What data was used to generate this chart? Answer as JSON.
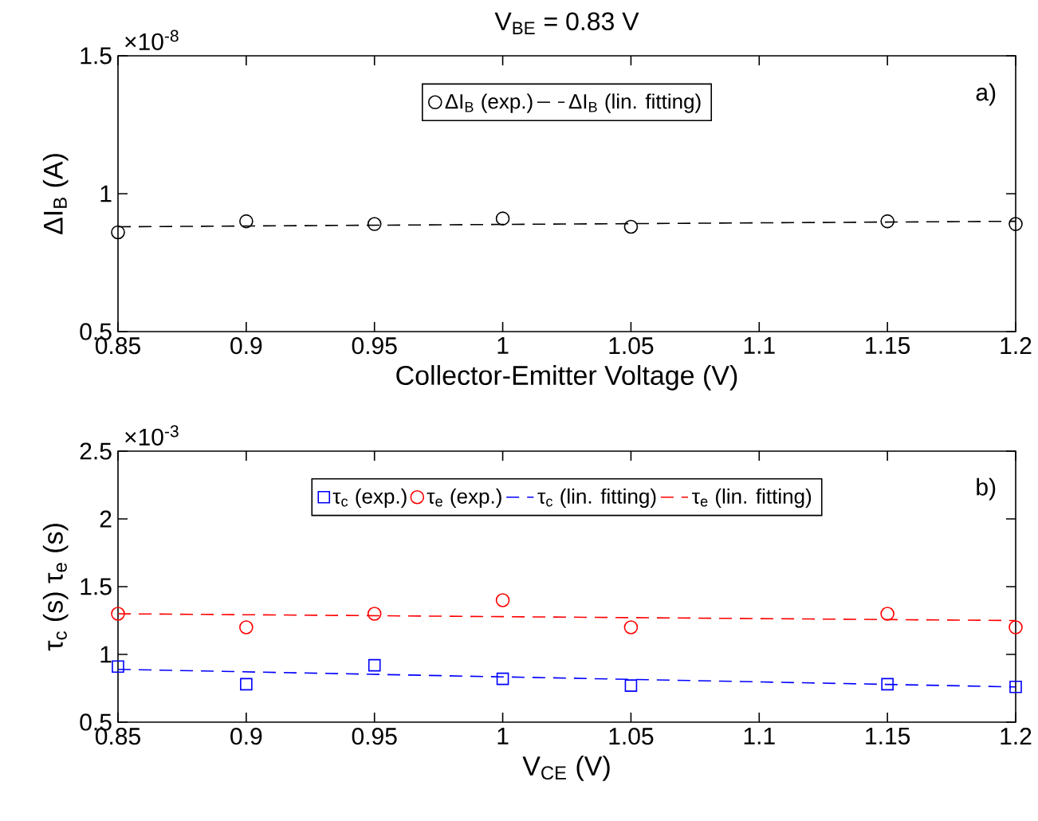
{
  "chart_data": [
    {
      "type": "scatter",
      "title": "V$_{BE}$ = 0.83 V",
      "xlabel": "Collector-Emitter Voltage (V)",
      "ylabel": "ΔI$_{B}$ (A)",
      "annotations": [
        "×10$^{-8}$",
        "a)"
      ],
      "xlim": [
        0.85,
        1.2
      ],
      "xticks": [
        0.85,
        0.9,
        0.95,
        1,
        1.05,
        1.1,
        1.15,
        1.2
      ],
      "ylim": [
        0.5,
        1.5
      ],
      "yticks": [
        0.5,
        1,
        1.5
      ],
      "legend": "top",
      "series": [
        {
          "name": "ΔI$_{B}$ (exp.)",
          "marker": "circle",
          "color": "#000000",
          "x": [
            0.85,
            0.9,
            0.95,
            1,
            1.05,
            1.15,
            1.2
          ],
          "values": [
            0.86,
            0.9,
            0.89,
            0.91,
            0.88,
            0.9,
            0.89
          ]
        },
        {
          "name": "ΔI$_{B}$ (lin. fitting)",
          "type": "line",
          "line_style": "dashed",
          "color": "#000000",
          "x": [
            0.85,
            1.2
          ],
          "values": [
            0.88,
            0.9
          ]
        }
      ]
    },
    {
      "type": "scatter",
      "xlabel": "V$_{CE}$ (V)",
      "ylabel": "τ$_{c}$ (s)   τ$_{e}$ (s)",
      "annotations": [
        "×10$^{-3}$",
        "b)"
      ],
      "xlim": [
        0.85,
        1.2
      ],
      "xticks": [
        0.85,
        0.9,
        0.95,
        1,
        1.05,
        1.1,
        1.15,
        1.2
      ],
      "ylim": [
        0.5,
        2.5
      ],
      "yticks": [
        0.5,
        1,
        1.5,
        2,
        2.5
      ],
      "legend": "top",
      "series": [
        {
          "name": "τ$_{c}$ (exp.)",
          "marker": "square",
          "color": "#0000ff",
          "x": [
            0.85,
            0.9,
            0.95,
            1,
            1.05,
            1.15,
            1.2
          ],
          "values": [
            0.91,
            0.78,
            0.92,
            0.82,
            0.77,
            0.78,
            0.76
          ]
        },
        {
          "name": "τ$_{e}$ (exp.)",
          "marker": "circle",
          "color": "#ff0000",
          "x": [
            0.85,
            0.9,
            0.95,
            1,
            1.05,
            1.15,
            1.2
          ],
          "values": [
            1.3,
            1.2,
            1.3,
            1.4,
            1.2,
            1.3,
            1.2
          ]
        },
        {
          "name": "τ$_{c}$ (lin. fitting)",
          "type": "line",
          "line_style": "dashed",
          "color": "#0000ff",
          "x": [
            0.85,
            1.2
          ],
          "values": [
            0.89,
            0.76
          ]
        },
        {
          "name": "τ$_{e}$ (lin. fitting)",
          "type": "line",
          "line_style": "dashed",
          "color": "#ff0000",
          "x": [
            0.85,
            1.2
          ],
          "values": [
            1.3,
            1.25
          ]
        }
      ]
    }
  ]
}
